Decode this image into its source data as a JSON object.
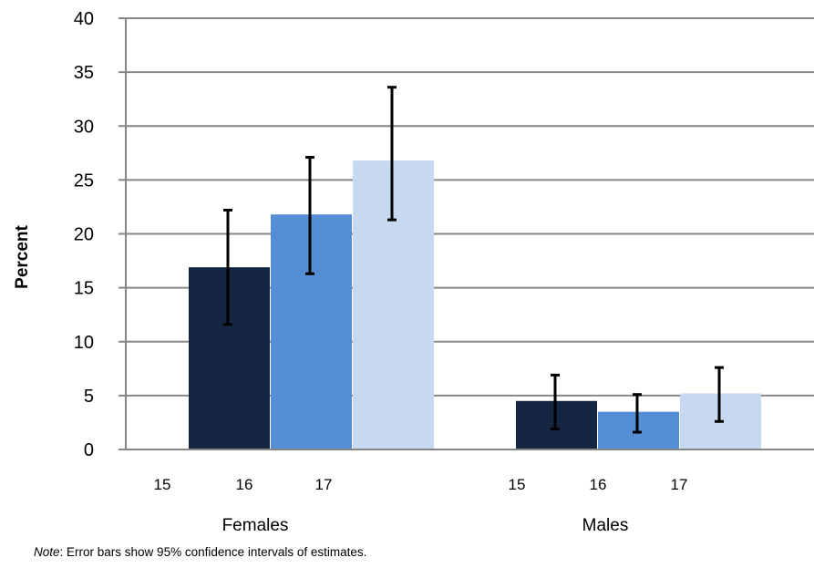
{
  "chart_data": {
    "type": "bar",
    "ylabel": "Percent",
    "xlabel": "",
    "ylim": [
      0,
      40
    ],
    "yticks": [
      0,
      5,
      10,
      15,
      20,
      25,
      30,
      35,
      40
    ],
    "grid": true,
    "groups": [
      {
        "label": "Females",
        "category_labels": [
          "15",
          "16",
          "17"
        ],
        "bars": [
          {
            "value": 16.9,
            "ci": [
              11.6,
              22.2
            ],
            "color": "#142641"
          },
          {
            "value": 21.8,
            "ci": [
              16.3,
              27.1
            ],
            "color": "#558ED5"
          },
          {
            "value": 26.8,
            "ci": [
              21.3,
              33.6
            ],
            "color": "#C6D9F1"
          }
        ]
      },
      {
        "label": "Males",
        "category_labels": [
          "15",
          "16",
          "17"
        ],
        "bars": [
          {
            "value": 4.5,
            "ci": [
              1.9,
              6.9
            ],
            "color": "#142641"
          },
          {
            "value": 3.5,
            "ci": [
              1.6,
              5.1
            ],
            "color": "#558ED5"
          },
          {
            "value": 5.2,
            "ci": [
              2.6,
              7.6
            ],
            "color": "#C6D9F1"
          }
        ]
      }
    ]
  },
  "note": {
    "prefix": "Note",
    "text": ":  Error bars show 95% confidence intervals of estimates."
  }
}
